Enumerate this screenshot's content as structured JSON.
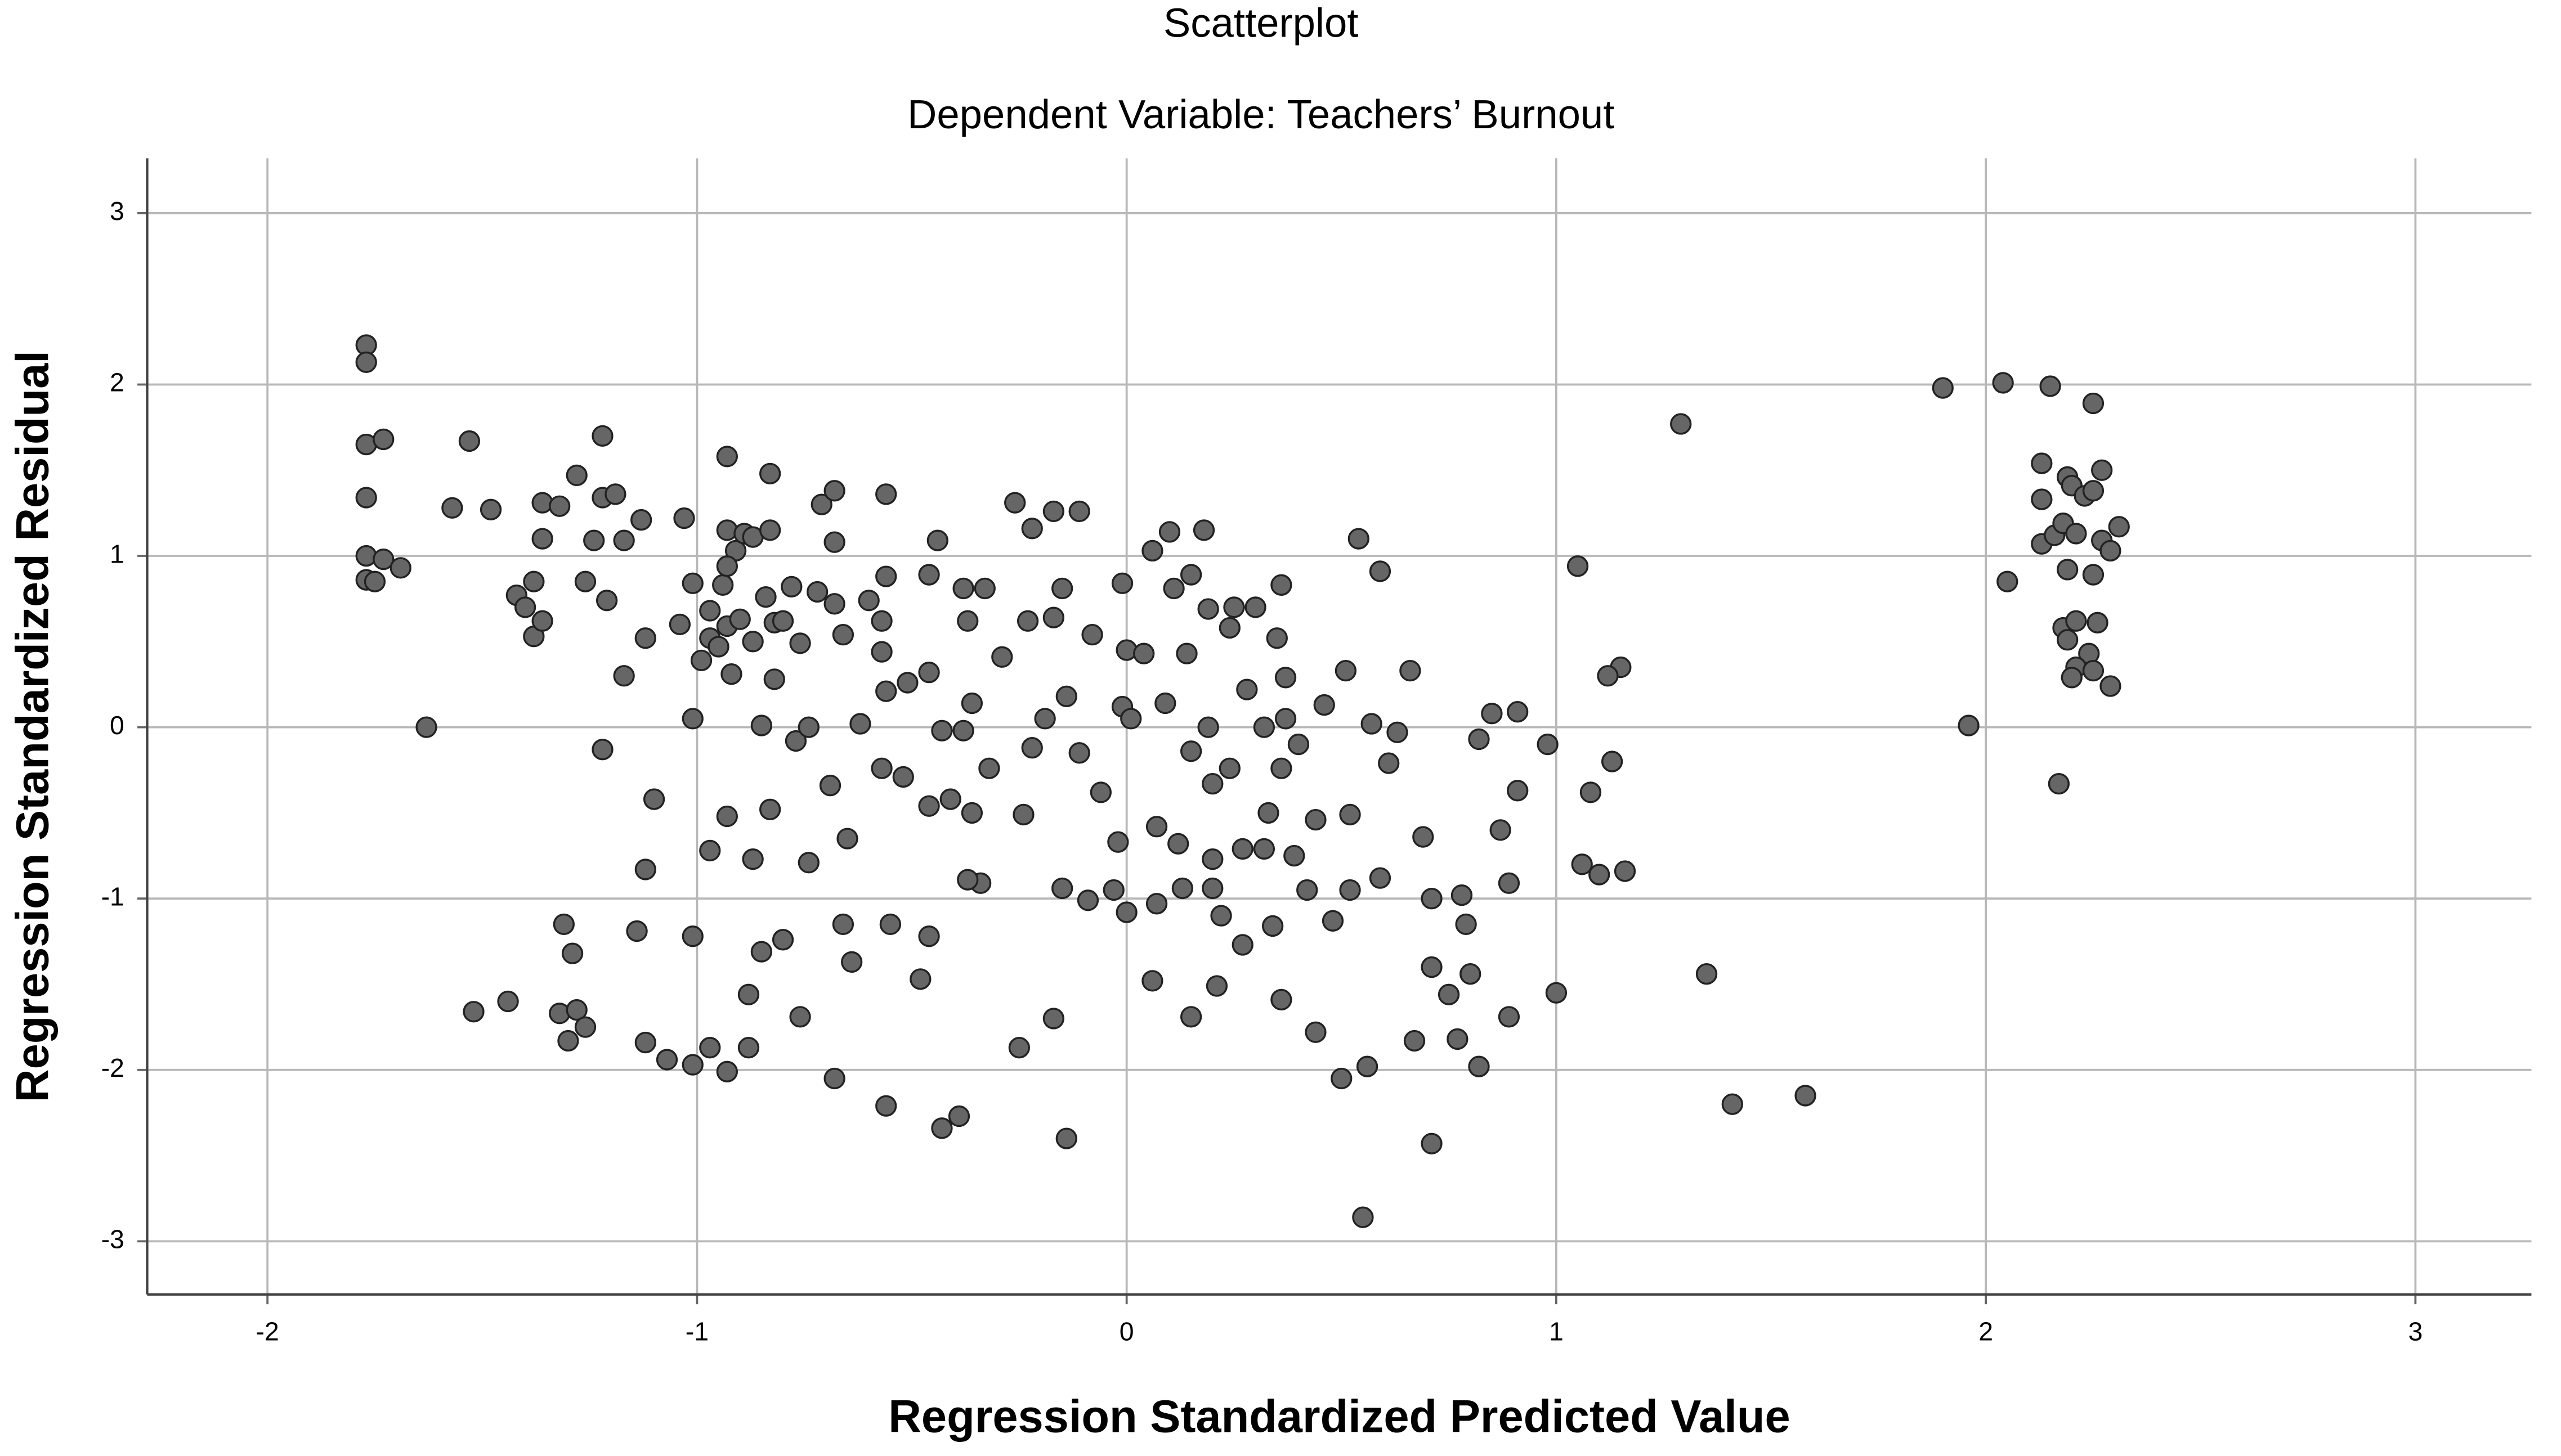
{
  "chart_data": {
    "type": "scatter",
    "title": "Scatterplot",
    "subtitle": "Dependent Variable: Teachers’ Burnout",
    "x_label": "Regression Standardized Predicted Value",
    "y_label": "Regression Standardized Residual",
    "color": "#666666",
    "edge_color": "#222222",
    "grid": true,
    "xlim": [
      -2.28,
      3.27
    ],
    "ylim": [
      -3.31,
      3.32
    ],
    "xticks": [
      -2,
      -1,
      0,
      1,
      2,
      3
    ],
    "yticks": [
      -3,
      -2,
      -1,
      0,
      1,
      2,
      3
    ],
    "x": [
      -1.77,
      -1.77,
      -1.77,
      -1.73,
      -1.77,
      -1.77,
      -1.73,
      -1.69,
      -1.77,
      -1.75,
      -1.63,
      -1.57,
      -1.53,
      -1.48,
      -1.52,
      -1.44,
      -1.42,
      -1.4,
      -1.38,
      -1.36,
      -1.36,
      -1.32,
      -1.38,
      -1.36,
      -1.28,
      -1.26,
      -1.24,
      -1.22,
      -1.22,
      -1.19,
      -1.21,
      -1.17,
      -1.22,
      -1.17,
      -1.13,
      -1.12,
      -1.1,
      -1.12,
      -1.14,
      -1.31,
      -1.29,
      -1.32,
      -1.28,
      -1.26,
      -1.3,
      -1.12,
      -1.07,
      -1.01,
      -0.97,
      -0.93,
      -0.88,
      -0.88,
      -1.01,
      -0.97,
      -0.93,
      -0.87,
      -0.83,
      -0.85,
      -0.8,
      -0.76,
      -0.74,
      -0.68,
      -0.56,
      -0.43,
      -0.39,
      -0.14,
      -0.25,
      -0.17,
      -1.01,
      -1.03,
      -1.04,
      -1.01,
      -0.99,
      -0.97,
      -0.97,
      -0.94,
      -0.93,
      -0.93,
      -0.91,
      -0.93,
      -0.89,
      -0.87,
      -0.83,
      -0.83,
      -0.93,
      -0.9,
      -0.95,
      -0.92,
      -0.87,
      -0.85,
      -0.84,
      -0.82,
      -0.82,
      -0.8,
      -0.78,
      -0.76,
      -0.77,
      -0.74,
      -0.72,
      -0.71,
      -0.68,
      -0.68,
      -0.68,
      -0.66,
      -0.69,
      -0.65,
      -0.66,
      -0.64,
      -0.62,
      -0.6,
      -0.56,
      -0.56,
      -0.57,
      -0.57,
      -0.56,
      -0.57,
      -0.55,
      -0.52,
      -0.51,
      -0.46,
      -0.46,
      -0.44,
      -0.48,
      -0.46,
      -0.46,
      -0.43,
      -0.41,
      -0.38,
      -0.37,
      -0.33,
      -0.36,
      -0.36,
      -0.34,
      -0.37,
      -0.38,
      -0.32,
      -0.29,
      -0.26,
      -0.22,
      -0.23,
      -0.22,
      -0.24,
      -0.19,
      -0.17,
      -0.11,
      -0.15,
      -0.17,
      -0.14,
      -0.15,
      -0.09,
      -0.11,
      -0.08,
      -0.06,
      -0.02,
      -0.03,
      0.0,
      -0.01,
      0.01,
      -0.01,
      0.0,
      0.04,
      0.06,
      0.1,
      0.09,
      0.11,
      0.07,
      0.07,
      0.06,
      0.12,
      0.13,
      0.14,
      0.15,
      0.15,
      0.18,
      0.19,
      0.19,
      0.2,
      0.2,
      0.2,
      0.21,
      0.15,
      0.22,
      0.24,
      0.25,
      0.24,
      0.27,
      0.27,
      0.28,
      0.3,
      0.32,
      0.32,
      0.33,
      0.34,
      0.35,
      0.36,
      0.37,
      0.36,
      0.36,
      0.37,
      0.39,
      0.4,
      0.42,
      0.44,
      0.44,
      0.46,
      0.48,
      0.5,
      0.51,
      0.52,
      0.54,
      0.52,
      0.56,
      0.55,
      0.59,
      0.57,
      0.59,
      0.61,
      0.63,
      0.66,
      0.67,
      0.69,
      0.71,
      0.71,
      0.71,
      0.75,
      0.77,
      0.78,
      0.79,
      0.8,
      0.82,
      0.82,
      0.85,
      0.87,
      0.89,
      0.89,
      0.91,
      0.91,
      0.98,
      1.0,
      1.05,
      1.06,
      1.08,
      1.1,
      1.13,
      1.15,
      1.16,
      1.12,
      1.29,
      1.35,
      1.41,
      1.58,
      1.9,
      2.04,
      2.15,
      2.25,
      1.96,
      2.05,
      2.13,
      2.13,
      2.13,
      2.16,
      2.18,
      2.19,
      2.2,
      2.23,
      2.25,
      2.27,
      2.21,
      2.27,
      2.31,
      2.29,
      2.19,
      2.25,
      2.18,
      2.21,
      2.26,
      2.19,
      2.24,
      2.21,
      2.2,
      2.25,
      2.29,
      2.17
    ],
    "y": [
      2.23,
      2.13,
      1.65,
      1.68,
      1.34,
      1.0,
      0.98,
      0.93,
      0.86,
      0.85,
      0.0,
      1.28,
      1.67,
      1.27,
      -1.66,
      -1.6,
      0.77,
      0.7,
      0.85,
      1.1,
      1.31,
      1.29,
      0.53,
      0.62,
      1.47,
      0.85,
      1.09,
      1.7,
      1.34,
      1.36,
      0.74,
      1.09,
      -0.13,
      0.3,
      1.21,
      0.52,
      -0.42,
      -0.83,
      -1.19,
      -1.15,
      -1.32,
      -1.67,
      -1.65,
      -1.75,
      -1.83,
      -1.84,
      -1.94,
      -1.97,
      -1.87,
      -2.01,
      -1.87,
      -1.56,
      -1.22,
      -0.72,
      -0.52,
      -0.77,
      -0.48,
      -1.31,
      -1.24,
      -1.69,
      -0.79,
      -2.05,
      -2.21,
      -2.34,
      -2.27,
      -2.4,
      -1.87,
      -1.7,
      0.05,
      1.22,
      0.6,
      0.84,
      0.39,
      0.52,
      0.68,
      0.83,
      1.58,
      1.15,
      1.03,
      0.94,
      1.13,
      1.11,
      1.48,
      1.15,
      0.59,
      0.63,
      0.47,
      0.31,
      0.5,
      0.01,
      0.76,
      0.61,
      0.28,
      0.62,
      0.82,
      0.49,
      -0.08,
      0.0,
      0.79,
      1.3,
      1.38,
      1.08,
      0.72,
      0.54,
      -0.34,
      -0.65,
      -1.15,
      -1.37,
      0.02,
      0.74,
      0.88,
      1.36,
      0.62,
      0.44,
      0.21,
      -0.24,
      -1.15,
      -0.29,
      0.26,
      0.89,
      0.32,
      1.09,
      -1.47,
      -1.22,
      -0.46,
      -0.02,
      -0.42,
      0.81,
      0.62,
      0.81,
      0.14,
      -0.5,
      -0.91,
      -0.89,
      -0.02,
      -0.24,
      0.41,
      1.31,
      1.16,
      0.62,
      -0.12,
      -0.51,
      0.05,
      1.26,
      1.26,
      0.81,
      0.64,
      0.18,
      -0.94,
      -1.01,
      -0.15,
      0.54,
      -0.38,
      -0.67,
      -0.95,
      -1.08,
      0.12,
      0.05,
      0.84,
      0.45,
      0.43,
      1.03,
      1.14,
      0.14,
      0.81,
      -0.58,
      -1.03,
      -1.48,
      -0.68,
      -0.94,
      0.43,
      0.89,
      -0.14,
      1.15,
      0.69,
      0.0,
      -0.33,
      -0.77,
      -0.94,
      -1.51,
      -1.69,
      -1.1,
      0.58,
      0.7,
      -0.24,
      -0.71,
      -1.27,
      0.22,
      0.7,
      0.0,
      -0.71,
      -0.5,
      -1.16,
      0.52,
      0.83,
      0.05,
      -0.24,
      -1.59,
      0.29,
      -0.75,
      -0.1,
      -0.95,
      -0.54,
      -1.78,
      0.13,
      -1.13,
      -2.05,
      0.33,
      -0.51,
      1.1,
      -0.95,
      -1.98,
      -2.86,
      0.91,
      0.02,
      -0.88,
      -0.21,
      -0.03,
      0.33,
      -1.83,
      -0.64,
      -1.0,
      -2.43,
      -1.4,
      -1.56,
      -1.82,
      -0.98,
      -1.15,
      -1.44,
      -0.07,
      -1.98,
      0.08,
      -0.6,
      -1.69,
      -0.91,
      0.09,
      -0.37,
      -0.1,
      -1.55,
      0.94,
      -0.8,
      -0.38,
      -0.86,
      -0.2,
      0.35,
      -0.84,
      0.3,
      1.77,
      -1.44,
      -2.2,
      -2.15,
      1.98,
      2.01,
      1.99,
      1.89,
      0.01,
      0.85,
      1.54,
      1.33,
      1.07,
      1.12,
      1.19,
      1.46,
      1.41,
      1.35,
      1.38,
      1.5,
      1.13,
      1.09,
      1.17,
      1.03,
      0.92,
      0.89,
      0.58,
      0.62,
      0.61,
      0.51,
      0.43,
      0.35,
      0.29,
      0.33,
      0.24,
      -0.33
    ]
  }
}
